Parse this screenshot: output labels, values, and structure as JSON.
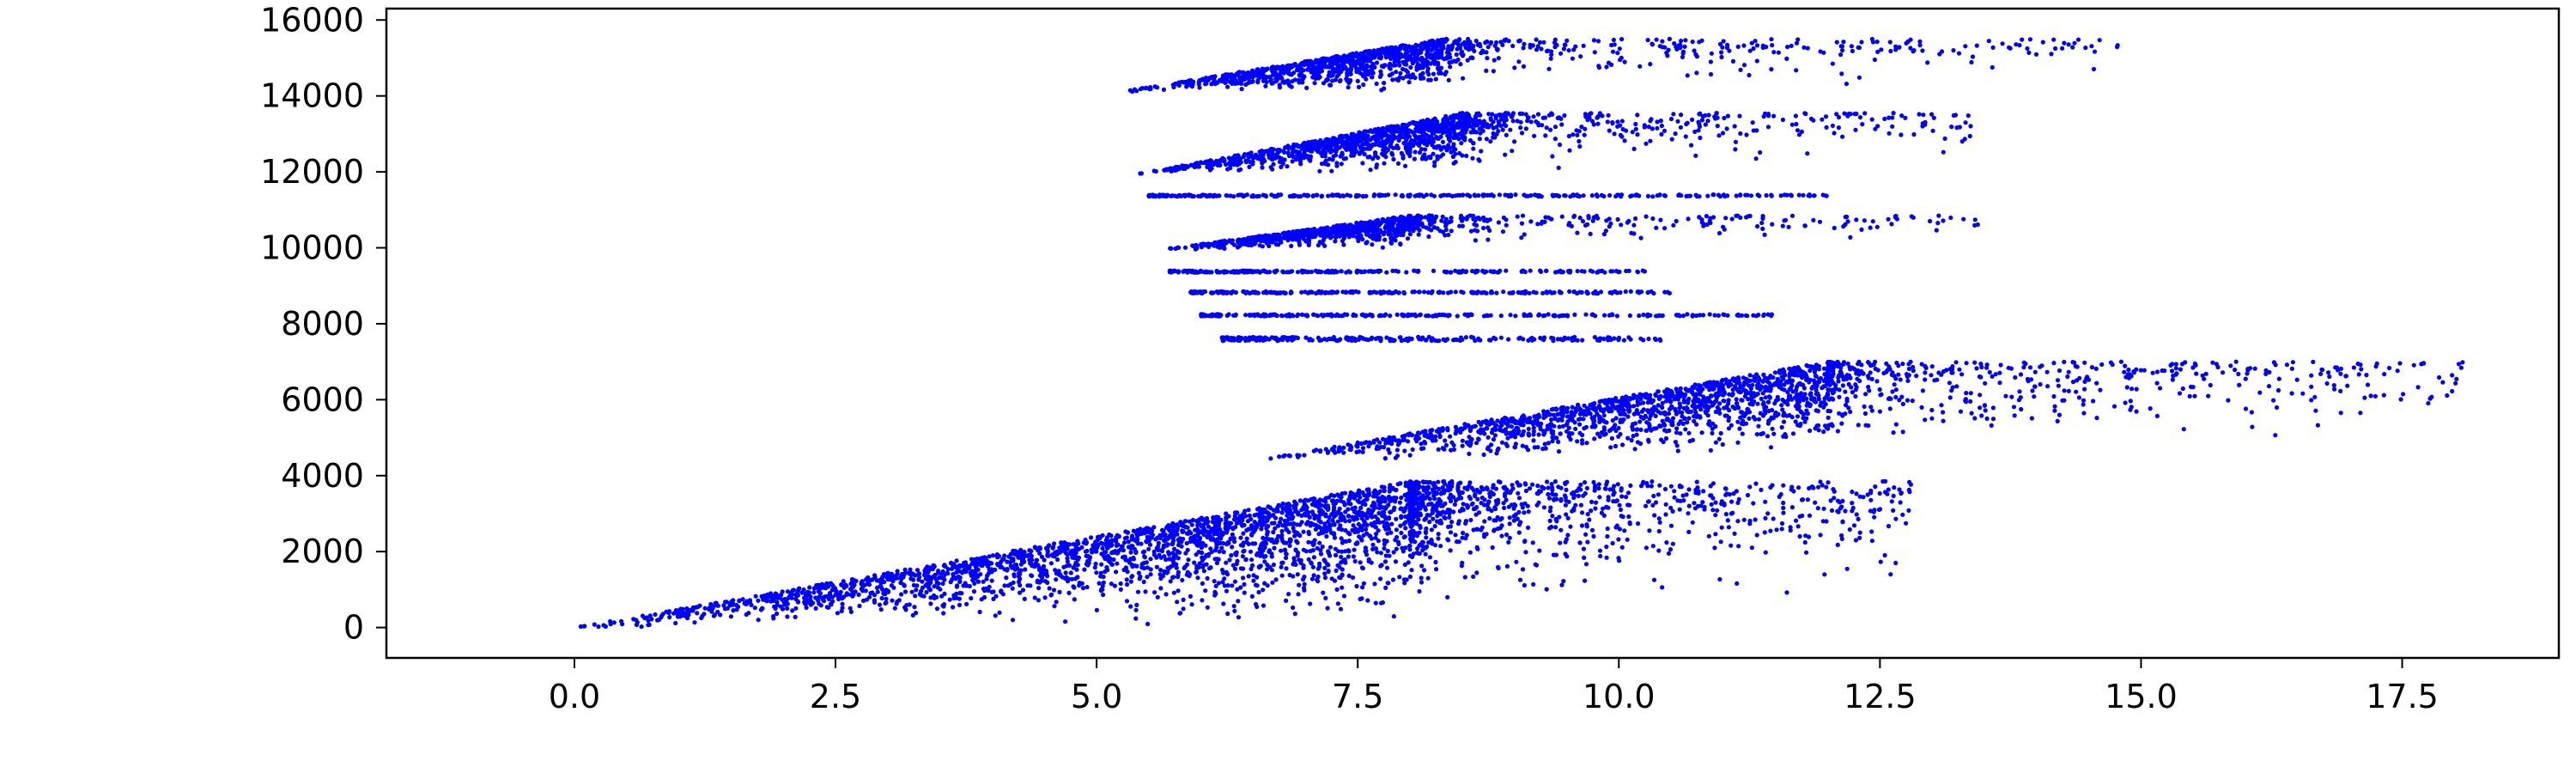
{
  "chart_data": {
    "type": "scatter",
    "title": "",
    "xlabel": "",
    "ylabel": "",
    "xlim": [
      -1.8,
      19.0
    ],
    "ylim": [
      -800,
      16300
    ],
    "x_ticks": [
      0.0,
      2.5,
      5.0,
      7.5,
      10.0,
      12.5,
      15.0,
      17.5
    ],
    "x_tick_labels": [
      "0.0",
      "2.5",
      "5.0",
      "7.5",
      "10.0",
      "12.5",
      "15.0",
      "17.5"
    ],
    "y_ticks": [
      0,
      2000,
      4000,
      6000,
      8000,
      10000,
      12000,
      14000,
      16000
    ],
    "y_tick_labels": [
      "0",
      "2000",
      "4000",
      "6000",
      "8000",
      "10000",
      "12000",
      "14000",
      "16000"
    ],
    "grid": false,
    "legend": "none",
    "marker_color": "#0000ff",
    "clusters": [
      {
        "x_start": 0.0,
        "x_peak": 8.0,
        "x_end": 12.8,
        "y_base": 0,
        "y_top": 3850,
        "n": 3200
      },
      {
        "x_start": 6.5,
        "x_peak": 12.0,
        "x_end": 18.1,
        "y_base": 4400,
        "y_top": 7000,
        "n": 1800
      },
      {
        "x_start": 6.2,
        "x_peak": 7.0,
        "x_end": 10.4,
        "y_base": 7550,
        "y_top": 7650,
        "n": 250,
        "band": true
      },
      {
        "x_start": 6.0,
        "x_peak": 7.0,
        "x_end": 11.5,
        "y_base": 8200,
        "y_top": 8250,
        "n": 250,
        "band": true
      },
      {
        "x_start": 5.9,
        "x_peak": 7.0,
        "x_end": 10.5,
        "y_base": 8800,
        "y_top": 8850,
        "n": 250,
        "band": true
      },
      {
        "x_start": 5.7,
        "x_peak": 7.0,
        "x_end": 10.3,
        "y_base": 9350,
        "y_top": 9400,
        "n": 250,
        "band": true
      },
      {
        "x_start": 5.6,
        "x_peak": 8.0,
        "x_end": 13.5,
        "y_base": 9950,
        "y_top": 10850,
        "n": 900
      },
      {
        "x_start": 5.5,
        "x_peak": 7.0,
        "x_end": 12.0,
        "y_base": 11350,
        "y_top": 11400,
        "n": 300,
        "band": true
      },
      {
        "x_start": 5.4,
        "x_peak": 8.5,
        "x_end": 13.4,
        "y_base": 11950,
        "y_top": 13550,
        "n": 1300
      },
      {
        "x_start": 5.2,
        "x_peak": 8.3,
        "x_end": 14.8,
        "y_base": 14100,
        "y_top": 15500,
        "n": 1200
      }
    ]
  }
}
